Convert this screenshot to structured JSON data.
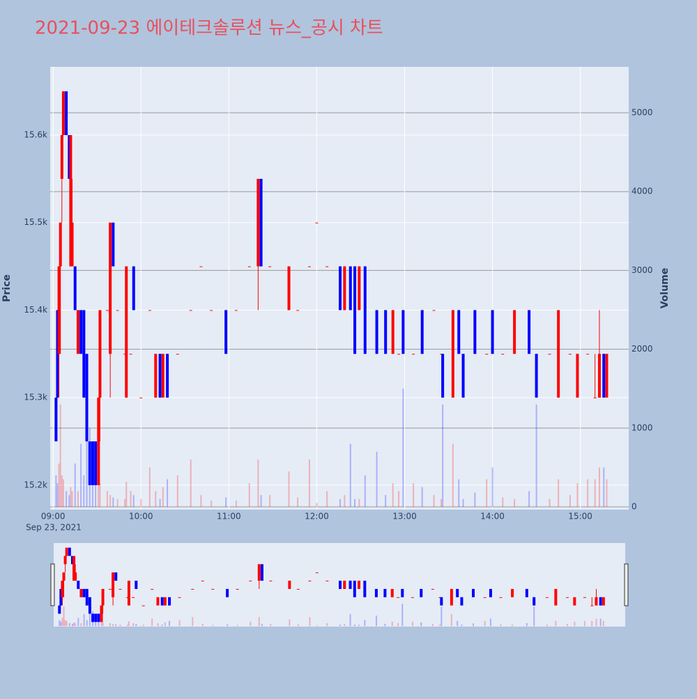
{
  "chart_data": {
    "type": "candlestick",
    "title": "2021-09-23 에이테크솔루션 뉴스_공시 차트",
    "y_title": "Price",
    "y2_title": "Volume",
    "x_date_label": "Sep 23, 2021",
    "increasing_color": "#ff0000",
    "decreasing_color": "#0000ff",
    "xlim": [
      "08:58",
      "15:33"
    ],
    "xticks": [
      "09:00",
      "10:00",
      "11:00",
      "12:00",
      "13:00",
      "14:00",
      "15:00"
    ],
    "ylim": [
      15172,
      15678
    ],
    "yticks": [
      {
        "value": 15200,
        "label": "15.2k"
      },
      {
        "value": 15300,
        "label": "15.3k"
      },
      {
        "value": 15400,
        "label": "15.4k"
      },
      {
        "value": 15500,
        "label": "15.5k"
      },
      {
        "value": 15600,
        "label": "15.6k"
      }
    ],
    "y2lim": [
      -35,
      5583
    ],
    "y2ticks": [
      0,
      1000,
      2000,
      3000,
      4000,
      5000
    ],
    "rangeslider": true,
    "x": [
      "09:02",
      "09:03",
      "09:04",
      "09:05",
      "09:06",
      "09:07",
      "09:09",
      "09:11",
      "09:12",
      "09:13",
      "09:15",
      "09:17",
      "09:19",
      "09:21",
      "09:23",
      "09:25",
      "09:27",
      "09:29",
      "09:31",
      "09:32",
      "09:37",
      "09:39",
      "09:41",
      "09:44",
      "09:49",
      "09:50",
      "09:53",
      "09:55",
      "10:00",
      "10:06",
      "10:10",
      "10:13",
      "10:15",
      "10:18",
      "10:25",
      "10:34",
      "10:41",
      "10:48",
      "10:58",
      "11:05",
      "11:14",
      "11:20",
      "11:22",
      "11:28",
      "11:41",
      "11:47",
      "11:55",
      "12:00",
      "12:07",
      "12:16",
      "12:19",
      "12:23",
      "12:26",
      "12:29",
      "12:33",
      "12:41",
      "12:47",
      "12:52",
      "12:56",
      "12:59",
      "13:06",
      "13:12",
      "13:20",
      "13:25",
      "13:26",
      "13:33",
      "13:37",
      "13:40",
      "13:48",
      "13:56",
      "14:00",
      "14:07",
      "14:15",
      "14:25",
      "14:30",
      "14:39",
      "14:45",
      "14:53",
      "14:58",
      "15:05",
      "15:10",
      "15:13",
      "15:16",
      "15:18"
    ],
    "open": [
      15300,
      15400,
      15350,
      15450,
      15550,
      15600,
      15650,
      15600,
      15450,
      15450,
      15450,
      15350,
      15400,
      15400,
      15350,
      15250,
      15250,
      15250,
      15200,
      15300,
      15400,
      15350,
      15500,
      15400,
      15350,
      15300,
      15350,
      15450,
      15300,
      15400,
      15300,
      15350,
      15300,
      15350,
      15350,
      15400,
      15450,
      15400,
      15400,
      15400,
      15450,
      15450,
      15550,
      15450,
      15400,
      15400,
      15450,
      15500,
      15450,
      15450,
      15400,
      15450,
      15450,
      15400,
      15450,
      15400,
      15400,
      15350,
      15350,
      15400,
      15350,
      15400,
      15400,
      15350,
      15350,
      15300,
      15400,
      15350,
      15400,
      15350,
      15400,
      15350,
      15350,
      15400,
      15350,
      15350,
      15300,
      15350,
      15300,
      15350,
      15300,
      15300,
      15350,
      15300
    ],
    "high": [
      15300,
      15400,
      15450,
      15500,
      15600,
      15650,
      15650,
      15600,
      15600,
      15550,
      15450,
      15400,
      15400,
      15400,
      15350,
      15250,
      15250,
      15250,
      15300,
      15400,
      15400,
      15500,
      15500,
      15400,
      15350,
      15450,
      15350,
      15450,
      15300,
      15400,
      15350,
      15350,
      15350,
      15350,
      15350,
      15400,
      15450,
      15400,
      15400,
      15400,
      15450,
      15550,
      15550,
      15450,
      15450,
      15400,
      15450,
      15500,
      15450,
      15450,
      15450,
      15450,
      15450,
      15450,
      15450,
      15400,
      15400,
      15400,
      15350,
      15400,
      15350,
      15400,
      15400,
      15350,
      15350,
      15400,
      15400,
      15350,
      15400,
      15350,
      15400,
      15350,
      15400,
      15400,
      15350,
      15350,
      15400,
      15350,
      15350,
      15350,
      15350,
      15400,
      15350,
      15350
    ],
    "low": [
      15250,
      15300,
      15300,
      15350,
      15500,
      15600,
      15600,
      15550,
      15450,
      15450,
      15400,
      15350,
      15350,
      15300,
      15250,
      15200,
      15200,
      15200,
      15200,
      15250,
      15400,
      15300,
      15450,
      15400,
      15350,
      15300,
      15350,
      15400,
      15300,
      15400,
      15300,
      15300,
      15300,
      15300,
      15350,
      15400,
      15450,
      15400,
      15350,
      15400,
      15450,
      15400,
      15450,
      15450,
      15400,
      15400,
      15450,
      15500,
      15450,
      15400,
      15400,
      15400,
      15350,
      15400,
      15350,
      15350,
      15350,
      15350,
      15350,
      15350,
      15350,
      15350,
      15400,
      15350,
      15300,
      15300,
      15350,
      15300,
      15350,
      15350,
      15350,
      15350,
      15350,
      15350,
      15300,
      15350,
      15300,
      15350,
      15300,
      15350,
      15300,
      15300,
      15300,
      15300
    ],
    "close": [
      15250,
      15300,
      15450,
      15500,
      15600,
      15650,
      15600,
      15550,
      15600,
      15500,
      15400,
      15400,
      15350,
      15300,
      15250,
      15200,
      15200,
      15200,
      15300,
      15400,
      15400,
      15500,
      15450,
      15400,
      15350,
      15450,
      15350,
      15400,
      15300,
      15400,
      15350,
      15300,
      15350,
      15300,
      15350,
      15400,
      15450,
      15400,
      15350,
      15400,
      15450,
      15550,
      15450,
      15450,
      15450,
      15400,
      15450,
      15500,
      15450,
      15400,
      15450,
      15400,
      15350,
      15450,
      15350,
      15350,
      15350,
      15400,
      15350,
      15350,
      15350,
      15350,
      15400,
      15350,
      15300,
      15400,
      15350,
      15300,
      15350,
      15350,
      15350,
      15350,
      15400,
      15350,
      15300,
      15350,
      15400,
      15350,
      15350,
      15350,
      15300,
      15350,
      15300,
      15350
    ],
    "volume": [
      400,
      300,
      550,
      1300,
      400,
      350,
      200,
      150,
      250,
      200,
      550,
      200,
      800,
      400,
      1500,
      1000,
      600,
      400,
      1100,
      300,
      200,
      150,
      120,
      100,
      100,
      320,
      200,
      150,
      100,
      500,
      200,
      100,
      250,
      350,
      400,
      600,
      150,
      80,
      120,
      80,
      300,
      600,
      150,
      150,
      450,
      120,
      600,
      50,
      200,
      100,
      150,
      800,
      100,
      100,
      400,
      700,
      150,
      300,
      200,
      1500,
      300,
      250,
      150,
      100,
      1300,
      800,
      350,
      100,
      180,
      350,
      500,
      120,
      100,
      200,
      1300,
      100,
      350,
      150,
      300,
      350,
      350,
      500,
      500,
      350
    ]
  }
}
